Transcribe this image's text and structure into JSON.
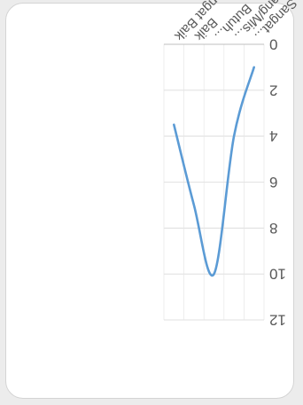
{
  "chart_data": {
    "type": "line",
    "categories": [
      "Sangat...",
      "Kurang/Mis...",
      "Butuh...",
      "Baik",
      "Sangat Baik"
    ],
    "series": [
      {
        "values": [
          1,
          4,
          10,
          7,
          3.5
        ]
      }
    ],
    "ylim": [
      0,
      12
    ],
    "yticks": [
      "0",
      "2",
      "4",
      "6",
      "8",
      "10",
      "12"
    ],
    "grid": true,
    "line_color": "#5b9bd5",
    "orientation": "rotated-180"
  }
}
